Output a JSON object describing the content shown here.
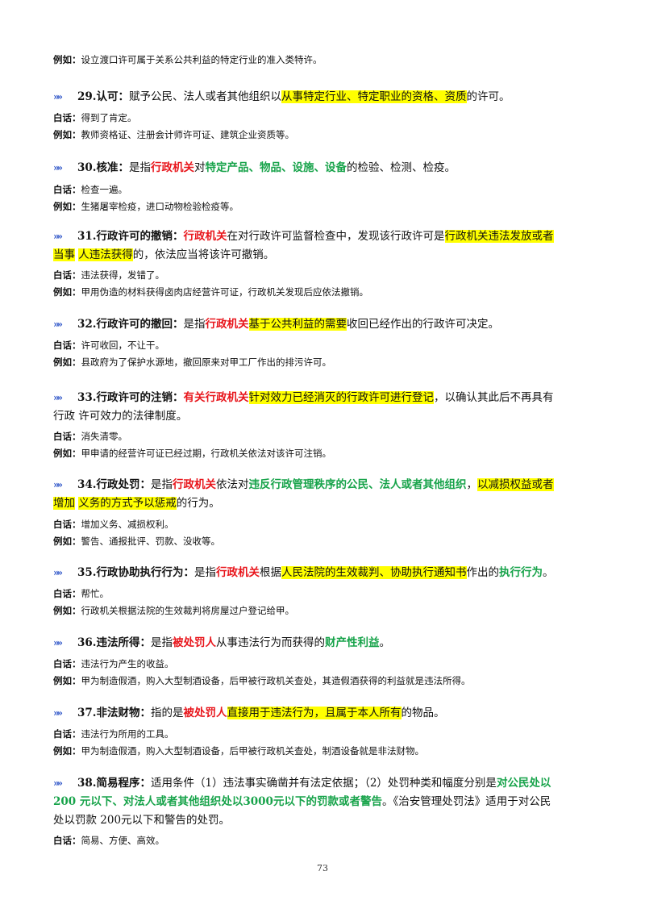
{
  "intro": {
    "label": "例如：",
    "text": "设立渡口许可属于关系公共利益的特定行业的准入类特许。"
  },
  "entries": [
    {
      "lines": [
        [
          {
            "t": "29.认可：",
            "s": "b"
          },
          {
            "t": "赋予公民、法人或者其他组织以"
          },
          {
            "t": "从事特定行业、特定职业的资格、资质",
            "s": "hl"
          },
          {
            "t": "的许可。"
          }
        ]
      ],
      "baihua": "得到了肯定。",
      "example": "教师资格证、注册会计师许可证、建筑企业资质等。"
    },
    {
      "lines": [
        [
          {
            "t": "30.核准：",
            "s": "b"
          },
          {
            "t": "是指"
          },
          {
            "t": "行政机关",
            "s": "red"
          },
          {
            "t": "对"
          },
          {
            "t": "特定产品、物品、设施、设备",
            "s": "green"
          },
          {
            "t": "的检验、检测、检疫。"
          }
        ]
      ],
      "baihua": "检查一遍。",
      "example": "生猪屠宰检疫，进口动物检验检疫等。"
    },
    {
      "lines": [
        [
          {
            "t": "31.行政许可的撤销：",
            "s": "b"
          },
          {
            "t": "行政机关",
            "s": "red"
          },
          {
            "t": "在对行政许可监督检查中，发现该行政许可是"
          },
          {
            "t": "行政机关违法发放或者",
            "s": "hl"
          }
        ],
        [
          {
            "t": "当事",
            "s": "hl"
          },
          {
            "t": " "
          },
          {
            "t": "人违法获得",
            "s": "hl"
          },
          {
            "t": "的，依法应当将该许可撤销。"
          }
        ]
      ],
      "baihua": "违法获得，发错了。",
      "example": "甲用伪造的材料获得卤肉店经营许可证，行政机关发现后应依法撤销。"
    },
    {
      "lines": [
        [
          {
            "t": "32.行政许可的撤回：",
            "s": "b"
          },
          {
            "t": "是指"
          },
          {
            "t": "行政机关",
            "s": "red"
          },
          {
            "t": "基于公共利益的需要",
            "s": "hl"
          },
          {
            "t": "收回已经作出的行政许可决定。"
          }
        ]
      ],
      "baihua": "许可收回，不让干。",
      "example": "县政府为了保护水源地，撤回原来对甲工厂作出的排污许可。"
    },
    {
      "lines": [
        [
          {
            "t": "33.行政许可的注销：",
            "s": "b"
          },
          {
            "t": "有关行政机关",
            "s": "red"
          },
          {
            "t": "针对效力已经消灭的行政许可进行登记",
            "s": "hl"
          },
          {
            "t": "，以确认其此后不再具有"
          }
        ],
        [
          {
            "t": "行政  许可效力的法律制度。"
          }
        ]
      ],
      "baihua": "消失清零。",
      "example": "甲申请的经营许可证已经过期，行政机关依法对该许可注销。"
    },
    {
      "lines": [
        [
          {
            "t": "34.行政处罚：",
            "s": "b"
          },
          {
            "t": "是指"
          },
          {
            "t": "行政机关",
            "s": "red"
          },
          {
            "t": "依法对"
          },
          {
            "t": "违反行政管理秩序的公民、法人或者其他组织",
            "s": "green"
          },
          {
            "t": "，"
          },
          {
            "t": "以减损权益或者",
            "s": "hl"
          }
        ],
        [
          {
            "t": "增加",
            "s": "hl"
          },
          {
            "t": " "
          },
          {
            "t": "义务的方式予以惩戒",
            "s": "hl"
          },
          {
            "t": "的行为。"
          }
        ]
      ],
      "baihua": "增加义务、减损权利。",
      "example": "警告、通报批评、罚款、没收等。"
    },
    {
      "lines": [
        [
          {
            "t": "35.行政协助执行行为：",
            "s": "b"
          },
          {
            "t": "是指"
          },
          {
            "t": "行政机关",
            "s": "red"
          },
          {
            "t": "根据"
          },
          {
            "t": "人民法院的生效裁判、协助执行通知书",
            "s": "hl"
          },
          {
            "t": "作出的"
          },
          {
            "t": "执行行为",
            "s": "green"
          },
          {
            "t": "。"
          }
        ]
      ],
      "baihua": "帮忙。",
      "example": "行政机关根据法院的生效裁判将房屋过户登记给甲。"
    },
    {
      "lines": [
        [
          {
            "t": "36.违法所得：",
            "s": "b"
          },
          {
            "t": "是指"
          },
          {
            "t": "被处罚人",
            "s": "red"
          },
          {
            "t": "从事违法行为而获得的"
          },
          {
            "t": "财产性利益",
            "s": "green"
          },
          {
            "t": "。"
          }
        ]
      ],
      "baihua": "违法行为产生的收益。",
      "example": "甲为制造假酒，购入大型制酒设备，后甲被行政机关查处，其造假酒获得的利益就是违法所得。"
    },
    {
      "lines": [
        [
          {
            "t": " 37.非法财物：",
            "s": "b"
          },
          {
            "t": "指的是"
          },
          {
            "t": "被处罚人",
            "s": "red"
          },
          {
            "t": "直接用于违法行为，且属于本人所有",
            "s": "hl"
          },
          {
            "t": "的物品。"
          }
        ]
      ],
      "baihua": "违法行为所用的工具。",
      "example": "甲为制造假酒，购入大型制酒设备，后甲被行政机关查处，制酒设备就是非法财物。"
    },
    {
      "lines": [
        [
          {
            "t": "38.简易程序：",
            "s": "b"
          },
          {
            "t": "适用条件（1）违法事实确凿并有法定依据；（2）处罚种类和幅度分别是"
          },
          {
            "t": "对公民处以",
            "s": "green"
          }
        ],
        [
          {
            "t": "200  元以下、对法人或者其他组织处以3000元以下的罚款或者警告",
            "s": "green"
          },
          {
            "t": "。《治安管理处罚法》适用于对公民"
          }
        ],
        [
          {
            "t": "处以罚款  200元以下和警告的处罚。"
          }
        ]
      ],
      "baihua": "简易、方便、高效。",
      "example": null
    }
  ],
  "labels": {
    "baihua": "白话：",
    "example": "例如："
  },
  "arrow_glyph": "»»",
  "page_number": "73"
}
